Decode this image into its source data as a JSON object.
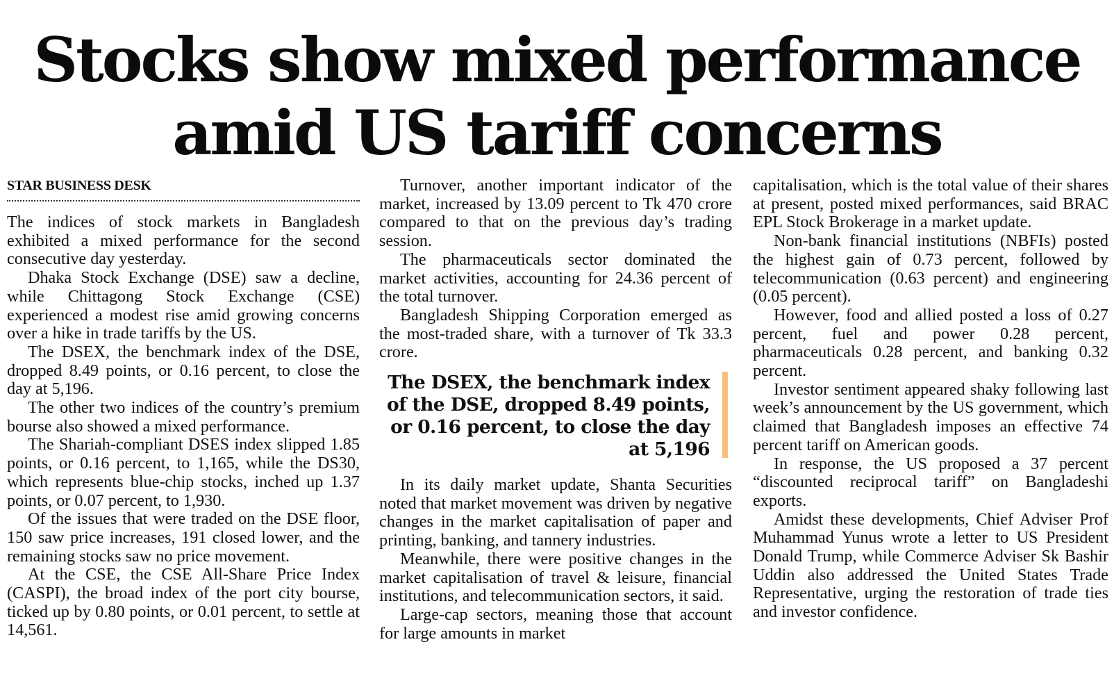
{
  "headline": {
    "line1": "Stocks show mixed performance",
    "line2": "amid US tariff concerns"
  },
  "byline": "STAR BUSINESS DESK",
  "accent_color": "#f7c07f",
  "pullquote": "The DSEX, the benchmark index of the DSE, dropped 8.49 points, or 0.16 percent, to close the day at 5,196",
  "columns": {
    "col1": [
      "The indices of stock markets in Bangladesh exhibited a mixed performance for the second consecutive day yesterday.",
      "Dhaka Stock Exchange (DSE) saw a decline, while Chittagong Stock Exchange (CSE) experienced a modest rise amid growing concerns over a hike in trade tariffs by the US.",
      "The DSEX, the benchmark index of the DSE, dropped 8.49 points, or 0.16 percent, to close the day at 5,196.",
      "The other two indices of the country’s premium bourse also showed a mixed performance.",
      "The Shariah-compliant DSES index slipped 1.85 points, or 0.16 percent, to 1,165, while the DS30, which represents blue-chip stocks, inched up 1.37 points, or 0.07 percent, to 1,930.",
      "Of the issues that were traded on the DSE floor, 150 saw price increases, 191 closed lower, and the remaining stocks saw no price movement.",
      "At the CSE, the CSE All-Share Price Index (CASPI), the broad index of the port city bourse, ticked up by 0.80 points, or 0.01 percent, to settle at 14,561."
    ],
    "col2_top": [
      "Turnover, another important indicator of the market, increased by 13.09 percent to Tk 470 crore compared to that on the previous day’s trading session.",
      "The pharmaceuticals sector dominated the market activities, accounting for 24.36 percent of the total turnover.",
      "Bangladesh Shipping Corporation emerged as the most-traded share, with a turnover of Tk 33.3 crore."
    ],
    "col2_bottom": [
      "In its daily market update, Shanta Securities noted that market movement was driven by negative changes in the market capitalisation of paper and printing, banking, and tannery industries.",
      "Meanwhile, there were positive changes in the market capitalisation of travel & leisure, financial institutions, and telecommunication sectors, it said.",
      "Large-cap sectors, meaning those that account for large amounts in market"
    ],
    "col3": [
      "capitalisation, which is the total value of their shares at present, posted mixed performances, said BRAC EPL Stock Brokerage in a market update.",
      "Non-bank financial institutions (NBFIs) posted the highest gain of 0.73 percent, followed by telecommunication (0.63 percent) and engineering (0.05 percent).",
      "However, food and allied posted a loss of 0.27 percent, fuel and power 0.28 percent, pharmaceuticals 0.28 percent, and banking 0.32 percent.",
      "Investor sentiment appeared shaky following last week’s announcement by the US government, which claimed that Bangladesh imposes an effective 74 percent tariff on American goods.",
      "In response, the US proposed a 37 percent “discounted reciprocal tariff” on Bangladeshi exports.",
      "Amidst these developments, Chief Adviser Prof Muhammad Yunus wrote a letter to US President Donald Trump, while Commerce Adviser Sk Bashir Uddin also addressed the United States Trade Representative, urging the restoration of trade ties and investor confidence."
    ]
  }
}
